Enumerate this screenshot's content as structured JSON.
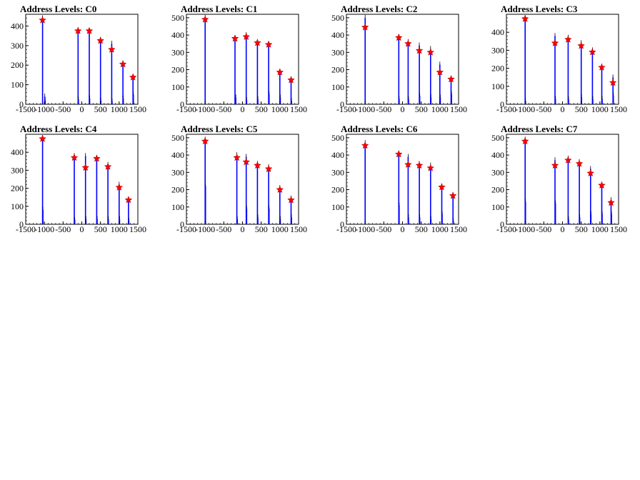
{
  "chart_data": [
    {
      "type": "bar",
      "title": "Address Levels: C0",
      "xlim": [
        -1500,
        1500
      ],
      "ylim": [
        0,
        460
      ],
      "xticks": [
        -1500,
        -1000,
        -500,
        0,
        500,
        1000,
        1500
      ],
      "yticks": [
        0,
        100,
        200,
        300,
        400
      ],
      "bars": [
        {
          "x": -1050,
          "y": 440
        },
        {
          "x": -990,
          "y": 40
        },
        {
          "x": -980,
          "y": 20
        },
        {
          "x": -100,
          "y": 380
        },
        {
          "x": -90,
          "y": 25
        },
        {
          "x": 200,
          "y": 370
        },
        {
          "x": 210,
          "y": 30
        },
        {
          "x": 500,
          "y": 330
        },
        {
          "x": 510,
          "y": 20
        },
        {
          "x": 800,
          "y": 310
        },
        {
          "x": 810,
          "y": 15
        },
        {
          "x": 1100,
          "y": 210
        },
        {
          "x": 1110,
          "y": 30
        },
        {
          "x": 1370,
          "y": 140
        },
        {
          "x": 1380,
          "y": 50
        }
      ],
      "peaks": [
        {
          "x": -1050,
          "y": 430
        },
        {
          "x": -100,
          "y": 375
        },
        {
          "x": 200,
          "y": 375
        },
        {
          "x": 500,
          "y": 325
        },
        {
          "x": 800,
          "y": 280
        },
        {
          "x": 1100,
          "y": 205
        },
        {
          "x": 1370,
          "y": 138
        }
      ]
    },
    {
      "type": "bar",
      "title": "Address Levels: C1",
      "xlim": [
        -1500,
        1500
      ],
      "ylim": [
        0,
        520
      ],
      "xticks": [
        -1500,
        -1000,
        -500,
        0,
        500,
        1000,
        1500
      ],
      "yticks": [
        0,
        100,
        200,
        300,
        400,
        500
      ],
      "bars": [
        {
          "x": -1000,
          "y": 500
        },
        {
          "x": -200,
          "y": 380
        },
        {
          "x": -180,
          "y": 40
        },
        {
          "x": 100,
          "y": 400
        },
        {
          "x": 110,
          "y": 25
        },
        {
          "x": 400,
          "y": 360
        },
        {
          "x": 410,
          "y": 30
        },
        {
          "x": 700,
          "y": 350
        },
        {
          "x": 710,
          "y": 60
        },
        {
          "x": 1000,
          "y": 190
        },
        {
          "x": 1010,
          "y": 40
        },
        {
          "x": 1300,
          "y": 145
        },
        {
          "x": 1310,
          "y": 20
        }
      ],
      "peaks": [
        {
          "x": -1000,
          "y": 490
        },
        {
          "x": -200,
          "y": 380
        },
        {
          "x": 100,
          "y": 390
        },
        {
          "x": 400,
          "y": 355
        },
        {
          "x": 700,
          "y": 345
        },
        {
          "x": 1000,
          "y": 185
        },
        {
          "x": 1300,
          "y": 140
        }
      ]
    },
    {
      "type": "bar",
      "title": "Address Levels: C2",
      "xlim": [
        -1500,
        1500
      ],
      "ylim": [
        0,
        520
      ],
      "xticks": [
        -1500,
        -1000,
        -500,
        0,
        500,
        1000,
        1500
      ],
      "yticks": [
        0,
        100,
        200,
        300,
        400,
        500
      ],
      "bars": [
        {
          "x": -1000,
          "y": 500
        },
        {
          "x": -100,
          "y": 390
        },
        {
          "x": -90,
          "y": 30
        },
        {
          "x": 150,
          "y": 360
        },
        {
          "x": 160,
          "y": 30
        },
        {
          "x": 450,
          "y": 340
        },
        {
          "x": 460,
          "y": 50
        },
        {
          "x": 750,
          "y": 320
        },
        {
          "x": 760,
          "y": 40
        },
        {
          "x": 1000,
          "y": 230
        },
        {
          "x": 1010,
          "y": 40
        },
        {
          "x": 1300,
          "y": 150
        },
        {
          "x": 1310,
          "y": 60
        }
      ],
      "peaks": [
        {
          "x": -1000,
          "y": 445
        },
        {
          "x": -100,
          "y": 385
        },
        {
          "x": 150,
          "y": 350
        },
        {
          "x": 450,
          "y": 310
        },
        {
          "x": 750,
          "y": 300
        },
        {
          "x": 1000,
          "y": 185
        },
        {
          "x": 1300,
          "y": 145
        }
      ]
    },
    {
      "type": "bar",
      "title": "Address Levels: C3",
      "xlim": [
        -1500,
        1500
      ],
      "ylim": [
        0,
        500
      ],
      "xticks": [
        -1500,
        -1000,
        -500,
        0,
        500,
        1000,
        1500
      ],
      "yticks": [
        0,
        100,
        200,
        300,
        400
      ],
      "bars": [
        {
          "x": -1000,
          "y": 480
        },
        {
          "x": -990,
          "y": 20
        },
        {
          "x": -200,
          "y": 380
        },
        {
          "x": -190,
          "y": 30
        },
        {
          "x": 150,
          "y": 370
        },
        {
          "x": 160,
          "y": 30
        },
        {
          "x": 500,
          "y": 340
        },
        {
          "x": 510,
          "y": 40
        },
        {
          "x": 800,
          "y": 300
        },
        {
          "x": 810,
          "y": 30
        },
        {
          "x": 1050,
          "y": 210
        },
        {
          "x": 1060,
          "y": 30
        },
        {
          "x": 1350,
          "y": 150
        },
        {
          "x": 1360,
          "y": 50
        }
      ],
      "peaks": [
        {
          "x": -1000,
          "y": 475
        },
        {
          "x": -200,
          "y": 340
        },
        {
          "x": 150,
          "y": 360
        },
        {
          "x": 500,
          "y": 325
        },
        {
          "x": 800,
          "y": 290
        },
        {
          "x": 1050,
          "y": 205
        },
        {
          "x": 1350,
          "y": 120
        }
      ]
    },
    {
      "type": "bar",
      "title": "Address Levels: C4",
      "xlim": [
        -1500,
        1500
      ],
      "ylim": [
        0,
        500
      ],
      "xticks": [
        -1500,
        -1000,
        -500,
        0,
        500,
        1000,
        1500
      ],
      "yticks": [
        0,
        100,
        200,
        300,
        400
      ],
      "bars": [
        {
          "x": -1050,
          "y": 480
        },
        {
          "x": -1040,
          "y": 80
        },
        {
          "x": -200,
          "y": 380
        },
        {
          "x": -190,
          "y": 25
        },
        {
          "x": 100,
          "y": 380
        },
        {
          "x": 110,
          "y": 30
        },
        {
          "x": 400,
          "y": 370
        },
        {
          "x": 410,
          "y": 30
        },
        {
          "x": 700,
          "y": 330
        },
        {
          "x": 710,
          "y": 30
        },
        {
          "x": 1000,
          "y": 220
        },
        {
          "x": 1010,
          "y": 30
        },
        {
          "x": 1250,
          "y": 140
        },
        {
          "x": 1260,
          "y": 20
        }
      ],
      "peaks": [
        {
          "x": -1050,
          "y": 475
        },
        {
          "x": -200,
          "y": 370
        },
        {
          "x": 100,
          "y": 315
        },
        {
          "x": 400,
          "y": 365
        },
        {
          "x": 700,
          "y": 320
        },
        {
          "x": 1000,
          "y": 205
        },
        {
          "x": 1250,
          "y": 135
        }
      ]
    },
    {
      "type": "bar",
      "title": "Address Levels: C5",
      "xlim": [
        -1500,
        1500
      ],
      "ylim": [
        0,
        520
      ],
      "xticks": [
        -1500,
        -1000,
        -500,
        0,
        500,
        1000,
        1500
      ],
      "yticks": [
        0,
        100,
        200,
        300,
        400,
        500
      ],
      "bars": [
        {
          "x": -1000,
          "y": 490
        },
        {
          "x": -990,
          "y": 220
        },
        {
          "x": -150,
          "y": 400
        },
        {
          "x": -140,
          "y": 30
        },
        {
          "x": 100,
          "y": 390
        },
        {
          "x": 110,
          "y": 90
        },
        {
          "x": 400,
          "y": 350
        },
        {
          "x": 410,
          "y": 40
        },
        {
          "x": 700,
          "y": 330
        },
        {
          "x": 710,
          "y": 90
        },
        {
          "x": 1000,
          "y": 210
        },
        {
          "x": 1010,
          "y": 30
        },
        {
          "x": 1300,
          "y": 150
        },
        {
          "x": 1310,
          "y": 40
        }
      ],
      "peaks": [
        {
          "x": -1000,
          "y": 480
        },
        {
          "x": -150,
          "y": 385
        },
        {
          "x": 100,
          "y": 360
        },
        {
          "x": 400,
          "y": 340
        },
        {
          "x": 700,
          "y": 320
        },
        {
          "x": 1000,
          "y": 200
        },
        {
          "x": 1300,
          "y": 140
        }
      ]
    },
    {
      "type": "bar",
      "title": "Address Levels: C6",
      "xlim": [
        -1500,
        1500
      ],
      "ylim": [
        0,
        520
      ],
      "xticks": [
        -1500,
        -1000,
        -500,
        0,
        500,
        1000,
        1500
      ],
      "yticks": [
        0,
        100,
        200,
        300,
        400,
        500
      ],
      "bars": [
        {
          "x": -1000,
          "y": 470
        },
        {
          "x": -100,
          "y": 410
        },
        {
          "x": -90,
          "y": 110
        },
        {
          "x": 150,
          "y": 390
        },
        {
          "x": 160,
          "y": 40
        },
        {
          "x": 450,
          "y": 350
        },
        {
          "x": 460,
          "y": 40
        },
        {
          "x": 750,
          "y": 340
        },
        {
          "x": 760,
          "y": 30
        },
        {
          "x": 1050,
          "y": 220
        },
        {
          "x": 1060,
          "y": 60
        },
        {
          "x": 1350,
          "y": 170
        },
        {
          "x": 1360,
          "y": 20
        }
      ],
      "peaks": [
        {
          "x": -1000,
          "y": 455
        },
        {
          "x": -100,
          "y": 405
        },
        {
          "x": 150,
          "y": 345
        },
        {
          "x": 450,
          "y": 340
        },
        {
          "x": 750,
          "y": 325
        },
        {
          "x": 1050,
          "y": 215
        },
        {
          "x": 1350,
          "y": 165
        }
      ]
    },
    {
      "type": "bar",
      "title": "Address Levels: C7",
      "xlim": [
        -1500,
        1500
      ],
      "ylim": [
        0,
        520
      ],
      "xticks": [
        -1500,
        -1000,
        -500,
        0,
        500,
        1000,
        1500
      ],
      "yticks": [
        0,
        100,
        200,
        300,
        400,
        500
      ],
      "bars": [
        {
          "x": -1000,
          "y": 490
        },
        {
          "x": -990,
          "y": 130
        },
        {
          "x": -200,
          "y": 370
        },
        {
          "x": -190,
          "y": 120
        },
        {
          "x": 150,
          "y": 380
        },
        {
          "x": 160,
          "y": 30
        },
        {
          "x": 450,
          "y": 360
        },
        {
          "x": 460,
          "y": 40
        },
        {
          "x": 750,
          "y": 320
        },
        {
          "x": 760,
          "y": 60
        },
        {
          "x": 1050,
          "y": 230
        },
        {
          "x": 1060,
          "y": 60
        },
        {
          "x": 1300,
          "y": 140
        },
        {
          "x": 1310,
          "y": 60
        }
      ],
      "peaks": [
        {
          "x": -1000,
          "y": 480
        },
        {
          "x": -200,
          "y": 340
        },
        {
          "x": 150,
          "y": 370
        },
        {
          "x": 450,
          "y": 350
        },
        {
          "x": 750,
          "y": 295
        },
        {
          "x": 1050,
          "y": 225
        },
        {
          "x": 1300,
          "y": 125
        }
      ]
    }
  ],
  "colors": {
    "bar": "#0000ff",
    "marker": "#ff0000",
    "axis": "#000000"
  }
}
